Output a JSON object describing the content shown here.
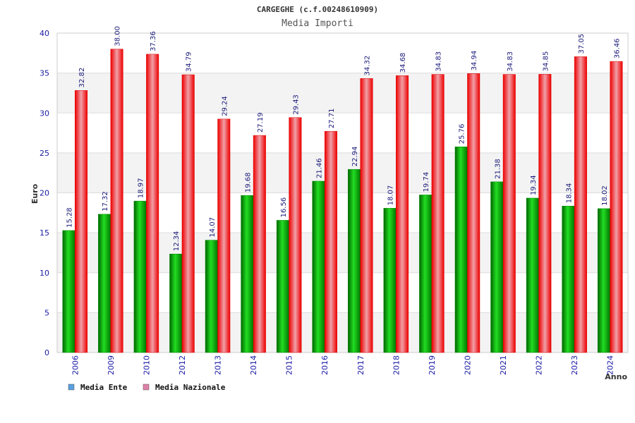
{
  "chart_data": {
    "type": "bar",
    "title": "CARGEGHE (c.f.00248610909)",
    "subtitle": "Media Importi",
    "ylabel": "Euro",
    "xlabel": "Anno",
    "ylim": [
      0,
      40
    ],
    "yticks": [
      0,
      5,
      10,
      15,
      20,
      25,
      30,
      35,
      40
    ],
    "grid": true,
    "legend_position": "bottom-left",
    "categories": [
      "2006",
      "2009",
      "2010",
      "2012",
      "2013",
      "2014",
      "2015",
      "2016",
      "2017",
      "2018",
      "2019",
      "2020",
      "2021",
      "2022",
      "2023",
      "2024"
    ],
    "series": [
      {
        "name": "Media Ente",
        "color": "#00aa00",
        "values": [
          15.28,
          17.32,
          18.97,
          12.34,
          14.07,
          19.68,
          16.56,
          21.46,
          22.94,
          18.07,
          19.74,
          25.76,
          21.38,
          19.34,
          18.34,
          18.02
        ],
        "labels": [
          "15.28",
          "17.32",
          "18.97",
          "12.34",
          "14.07",
          "19.68",
          "16.56",
          "21.46",
          "22.94",
          "18.07",
          "19.74",
          "25.76",
          "21.38",
          "19.34",
          "18.34",
          "18.02"
        ]
      },
      {
        "name": "Media Nazionale",
        "color": "#ee1111",
        "values": [
          32.82,
          38.0,
          37.36,
          34.79,
          29.24,
          27.19,
          29.43,
          27.71,
          34.32,
          34.68,
          34.83,
          34.94,
          34.83,
          34.85,
          37.05,
          36.46
        ],
        "labels": [
          "32.82",
          "38.00",
          "37.36",
          "34.79",
          "29.24",
          "27.19",
          "29.43",
          "27.71",
          "34.32",
          "34.68",
          "34.83",
          "34.94",
          "34.83",
          "34.85",
          "37.05",
          "36.46"
        ]
      }
    ],
    "legend": [
      {
        "label": "Media Ente",
        "swatch_color": "#5aa0e0"
      },
      {
        "label": "Media Nazionale",
        "swatch_color": "#e080a8"
      }
    ]
  }
}
